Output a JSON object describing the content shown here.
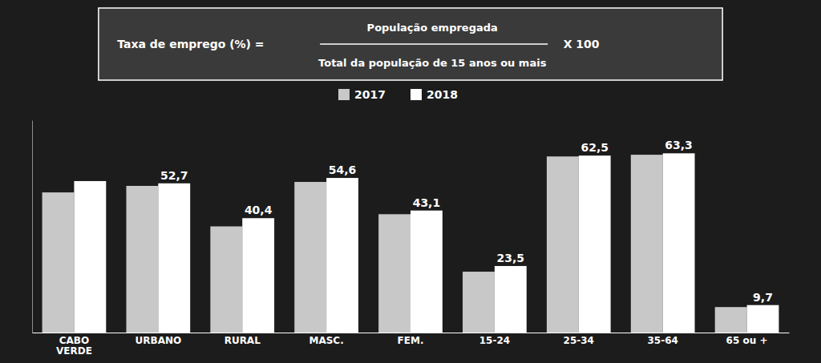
{
  "chart_data": {
    "type": "bar",
    "annotations": [
      "Taxa de emprego (%) = ",
      "População empregada",
      "Total da população de 15 anos ou mais",
      "X 100"
    ],
    "categories": [
      "CABO\nVERDE",
      "URBANO",
      "RURAL",
      "MASC.",
      "FEM.",
      "15-24",
      "25-34",
      "35-64",
      "65 ou +"
    ],
    "series": [
      {
        "name": "2017",
        "color": "#c8c8c8",
        "values": [
          49.5,
          51.8,
          37.5,
          53.2,
          41.8,
          21.5,
          62.2,
          62.8,
          9.0
        ]
      },
      {
        "name": "2018",
        "color": "#ffffff",
        "values": [
          53.5,
          52.7,
          40.4,
          54.6,
          43.1,
          23.5,
          62.5,
          63.3,
          9.7
        ],
        "data_labels": true,
        "value_labels": [
          null,
          "52,7",
          "40,4",
          "54,6",
          "43,1",
          "23,5",
          "62,5",
          "63,3",
          "9,7"
        ]
      }
    ],
    "ylim": [
      0,
      75
    ],
    "legend": "top",
    "tick_labels": "x",
    "grid": false
  }
}
